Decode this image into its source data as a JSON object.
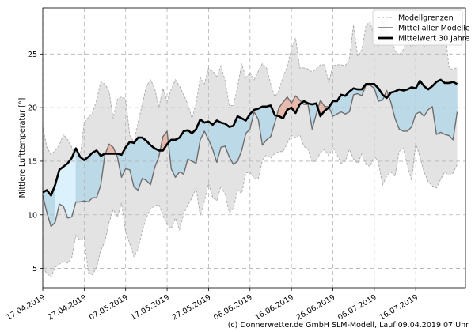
{
  "chart_data": {
    "type": "line",
    "title": "",
    "ylabel": "Mittlere Lufttemperatur [°]",
    "xlabel": "",
    "ylim": [
      3.2,
      29.3
    ],
    "xlim": [
      0,
      102
    ],
    "yticks": [
      5,
      10,
      15,
      20,
      25
    ],
    "xticks": [
      {
        "day": 0,
        "label": "17.04.2019"
      },
      {
        "day": 10,
        "label": "27.04.2019"
      },
      {
        "day": 20,
        "label": "07.05.2019"
      },
      {
        "day": 30,
        "label": "17.05.2019"
      },
      {
        "day": 40,
        "label": "27.05.2019"
      },
      {
        "day": 50,
        "label": "06.06.2019"
      },
      {
        "day": 60,
        "label": "16.06.2019"
      },
      {
        "day": 70,
        "label": "26.06.2019"
      },
      {
        "day": 80,
        "label": "06.07.2019"
      },
      {
        "day": 90,
        "label": "16.07.2019"
      }
    ],
    "grid": true,
    "legend": {
      "position": "top-right",
      "entries": [
        {
          "label": "Modellgrenzen",
          "style": "dashed",
          "color": "#a9a9a9"
        },
        {
          "label": "Mittel aller Modelle",
          "style": "solid",
          "color": "#707070"
        },
        {
          "label": "Mittelwert 30 Jahre",
          "style": "solid-bold",
          "color": "#000000"
        }
      ]
    },
    "colors": {
      "envelope": "#e3e3e3",
      "envelope_line": "#a9a9a9",
      "model_line": "#6e6e6e",
      "climate_line": "#000000",
      "below": "#bcd9e8",
      "above": "#e8b9ad",
      "special_zone": "#dbf1fb"
    },
    "special_zone": [
      3,
      8
    ],
    "series": [
      {
        "name": "Mittelwert 30 Jahre",
        "x_start": 0,
        "values": [
          12.1,
          12.3,
          11.8,
          12.8,
          14.2,
          14.5,
          14.8,
          15.3,
          16.2,
          15.4,
          15.1,
          15.4,
          15.8,
          16.0,
          15.5,
          15.7,
          15.7,
          15.7,
          15.7,
          15.6,
          16.3,
          16.8,
          16.7,
          17.2,
          17.2,
          16.9,
          16.5,
          16.2,
          16.0,
          16.0,
          16.6,
          17.0,
          17.0,
          17.2,
          17.8,
          17.9,
          17.6,
          18.0,
          18.9,
          18.6,
          18.7,
          18.4,
          18.8,
          18.6,
          18.5,
          18.2,
          18.3,
          19.2,
          19.0,
          18.8,
          19.4,
          19.8,
          19.9,
          20.1,
          20.1,
          20.2,
          19.3,
          19.2,
          19.0,
          19.8,
          20.0,
          19.5,
          20.3,
          20.6,
          20.4,
          20.3,
          20.4,
          19.2,
          19.7,
          20.0,
          20.6,
          20.6,
          21.2,
          21.1,
          21.5,
          21.8,
          21.7,
          21.7,
          22.2,
          22.2,
          22.2,
          21.8,
          21.2,
          20.9,
          21.4,
          21.5,
          21.7,
          21.6,
          21.7,
          21.9,
          21.8,
          22.5,
          22.0,
          21.7,
          22.0,
          22.4,
          22.6,
          22.3,
          22.3,
          22.4,
          22.2
        ]
      },
      {
        "name": "Mittel aller Modelle",
        "x_start": 0,
        "values": [
          11.8,
          10.2,
          8.9,
          9.3,
          11.0,
          10.8,
          9.7,
          9.8,
          11.2,
          11.2,
          11.3,
          11.2,
          11.6,
          11.6,
          12.8,
          15.6,
          16.6,
          16.3,
          15.4,
          13.5,
          14.3,
          14.2,
          12.6,
          12.3,
          13.4,
          13.2,
          12.8,
          14.4,
          15.4,
          17.3,
          17.8,
          14.3,
          13.5,
          14.0,
          13.8,
          15.2,
          15.0,
          14.8,
          17.0,
          17.8,
          17.0,
          16.1,
          14.9,
          16.3,
          16.4,
          15.4,
          14.7,
          15.0,
          16.0,
          17.6,
          18.0,
          19.6,
          18.9,
          16.5,
          17.0,
          17.3,
          18.6,
          20.0,
          20.5,
          21.0,
          20.4,
          21.1,
          20.7,
          20.3,
          20.3,
          18.0,
          19.4,
          20.7,
          20.1,
          20.1,
          19.2,
          19.4,
          19.6,
          19.4,
          19.6,
          21.2,
          21.3,
          21.1,
          22.1,
          22.1,
          21.8,
          20.6,
          20.7,
          21.6,
          20.5,
          19.0,
          18.0,
          17.8,
          17.8,
          18.2,
          19.4,
          19.6,
          19.2,
          19.8,
          20.1,
          17.5,
          17.7,
          17.5,
          17.4,
          17.0,
          19.6
        ]
      },
      {
        "name": "Modellgrenzen oben",
        "x_start": 0,
        "values": [
          18.2,
          16.3,
          15.6,
          16.0,
          16.5,
          17.5,
          17.0,
          16.3,
          15.4,
          15.4,
          18.6,
          19.1,
          19.5,
          20.7,
          22.4,
          22.2,
          21.5,
          19.0,
          20.8,
          21.0,
          20.8,
          17.4,
          16.8,
          18.6,
          20.3,
          22.0,
          22.6,
          21.8,
          20.0,
          21.8,
          20.6,
          21.7,
          22.6,
          22.0,
          21.2,
          20.3,
          19.0,
          20.4,
          22.8,
          22.2,
          23.7,
          23.4,
          22.9,
          23.9,
          22.5,
          20.2,
          20.2,
          21.9,
          24.1,
          22.8,
          23.3,
          22.6,
          23.4,
          24.1,
          23.7,
          22.2,
          21.0,
          21.6,
          22.9,
          23.8,
          25.5,
          26.5,
          23.7,
          23.7,
          23.6,
          23.3,
          23.6,
          24.0,
          24.0,
          22.3,
          23.9,
          24.0,
          24.0,
          23.9,
          24.6,
          27.7,
          24.8,
          25.4,
          27.7,
          28.0,
          26.5,
          25.8,
          28.1,
          27.1,
          26.6,
          25.3,
          24.9,
          25.4,
          26.4,
          25.6,
          26.5,
          27.8,
          25.6,
          26.6,
          26.1,
          26.4,
          26.8,
          27.6,
          23.8,
          23.5,
          23.8
        ]
      },
      {
        "name": "Modellgrenzen unten",
        "x_start": 0,
        "values": [
          5.1,
          4.5,
          4.2,
          5.1,
          5.4,
          5.6,
          5.5,
          6.0,
          8.1,
          7.6,
          7.9,
          4.6,
          4.4,
          5.1,
          6.7,
          7.5,
          9.3,
          10.5,
          9.8,
          11.1,
          8.4,
          7.3,
          6.1,
          6.8,
          8.5,
          9.7,
          10.6,
          10.8,
          11.0,
          9.9,
          9.1,
          8.7,
          9.7,
          8.6,
          10.1,
          10.9,
          11.6,
          12.5,
          9.9,
          11.3,
          12.9,
          11.6,
          11.3,
          12.7,
          11.9,
          10.2,
          10.6,
          12.3,
          12.0,
          13.9,
          14.0,
          13.4,
          13.3,
          15.1,
          15.6,
          15.3,
          15.7,
          15.9,
          15.9,
          16.7,
          17.4,
          17.2,
          17.5,
          16.4,
          16.1,
          14.9,
          15.1,
          15.8,
          16.1,
          15.5,
          16.3,
          15.6,
          14.8,
          15.0,
          16.1,
          15.2,
          14.8,
          15.7,
          14.7,
          14.5,
          15.5,
          14.9,
          12.8,
          13.6,
          14.0,
          13.6,
          15.9,
          16.2,
          14.6,
          13.2,
          16.7,
          15.4,
          14.0,
          13.1,
          12.7,
          12.5,
          13.3,
          14.0,
          13.7,
          13.9,
          14.7
        ]
      }
    ]
  },
  "footer": {
    "copyright": "(c) Donnerwetter.de GmbH SLM-Modell, Lauf 09.04.2019 07 Uhr"
  }
}
